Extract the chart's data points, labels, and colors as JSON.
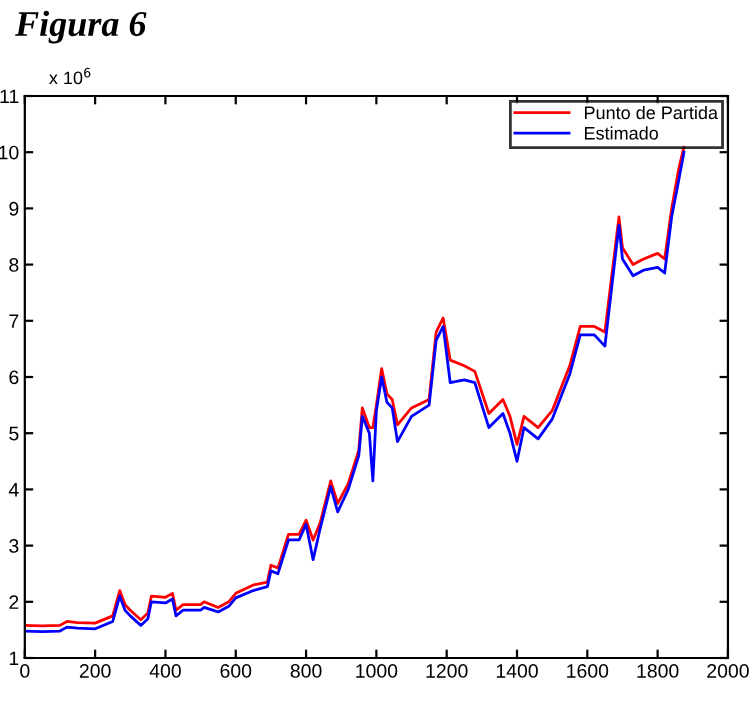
{
  "chart_data": {
    "type": "line",
    "title": "Figura 6",
    "annotations": [
      "x 10$^{6}$"
    ],
    "x": [
      0,
      50,
      100,
      120,
      150,
      200,
      250,
      270,
      285,
      300,
      330,
      350,
      360,
      400,
      420,
      430,
      450,
      500,
      510,
      550,
      580,
      600,
      650,
      690,
      700,
      720,
      750,
      780,
      800,
      820,
      840,
      870,
      890,
      920,
      950,
      960,
      980,
      990,
      1000,
      1015,
      1030,
      1045,
      1060,
      1100,
      1150,
      1170,
      1190,
      1210,
      1250,
      1280,
      1320,
      1360,
      1380,
      1400,
      1420,
      1460,
      1500,
      1550,
      1580,
      1620,
      1650,
      1690,
      1700,
      1730,
      1760,
      1800,
      1820,
      1840,
      1860,
      1875
    ],
    "series": [
      {
        "name": "Punto de Partida",
        "color": "#ff0000",
        "values": [
          1.58,
          1.57,
          1.58,
          1.65,
          1.63,
          1.62,
          1.75,
          2.2,
          1.95,
          1.85,
          1.68,
          1.8,
          2.1,
          2.08,
          2.15,
          1.85,
          1.95,
          1.95,
          2.0,
          1.9,
          2.0,
          2.15,
          2.3,
          2.35,
          2.65,
          2.6,
          3.2,
          3.2,
          3.45,
          3.1,
          3.4,
          4.15,
          3.75,
          4.1,
          4.7,
          5.45,
          5.1,
          5.1,
          5.5,
          6.15,
          5.7,
          5.6,
          5.15,
          5.45,
          5.6,
          6.8,
          7.05,
          6.3,
          6.2,
          6.1,
          5.35,
          5.6,
          5.3,
          4.8,
          5.3,
          5.1,
          5.4,
          6.2,
          6.9,
          6.9,
          6.8,
          8.85,
          8.3,
          8.0,
          8.1,
          8.2,
          8.1,
          9.0,
          9.7,
          10.1
        ]
      },
      {
        "name": "Estimado",
        "color": "#0000ff",
        "values": [
          1.48,
          1.47,
          1.48,
          1.55,
          1.53,
          1.52,
          1.65,
          2.1,
          1.85,
          1.75,
          1.58,
          1.7,
          2.0,
          1.98,
          2.05,
          1.75,
          1.85,
          1.85,
          1.9,
          1.82,
          1.92,
          2.07,
          2.2,
          2.27,
          2.55,
          2.5,
          3.1,
          3.1,
          3.38,
          2.75,
          3.3,
          4.05,
          3.6,
          4.0,
          4.6,
          5.3,
          5.0,
          4.15,
          5.4,
          6.0,
          5.55,
          5.45,
          4.85,
          5.3,
          5.5,
          6.65,
          6.9,
          5.9,
          5.95,
          5.9,
          5.1,
          5.35,
          5.0,
          4.5,
          5.1,
          4.9,
          5.25,
          6.05,
          6.75,
          6.75,
          6.55,
          8.7,
          8.1,
          7.8,
          7.9,
          7.95,
          7.85,
          8.85,
          9.5,
          10.0
        ]
      }
    ],
    "xlim": [
      0,
      2000
    ],
    "xticks": [
      0,
      200,
      400,
      600,
      800,
      1000,
      1200,
      1400,
      1600,
      1800,
      2000
    ],
    "ylim": [
      1,
      11
    ],
    "yticks": [
      1,
      2,
      3,
      4,
      5,
      6,
      7,
      8,
      9,
      10,
      11
    ],
    "legend": "top right",
    "grid": false
  }
}
